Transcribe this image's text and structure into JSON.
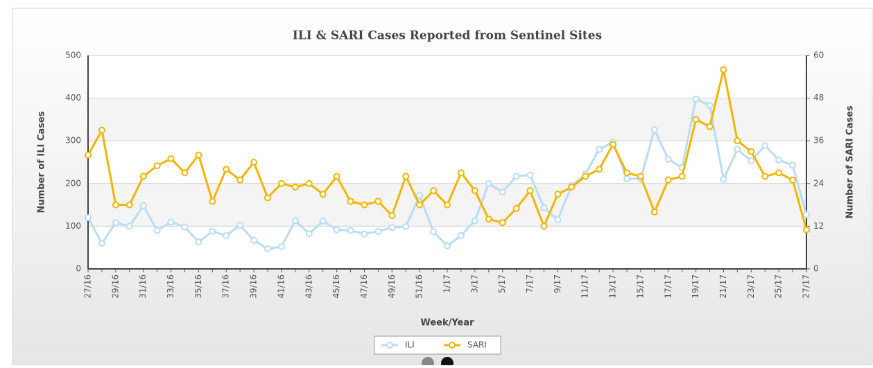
{
  "chart_data": {
    "type": "line",
    "title": "ILI & SARI Cases Reported from Sentinel Sites",
    "x_label": "Week/Year",
    "y_label": "Number of ILI Cases",
    "y2_label": "Number of SARI Cases",
    "categories": [
      "27/16",
      null,
      "29/16",
      null,
      "31/16",
      null,
      "33/16",
      null,
      "35/16",
      null,
      "37/16",
      null,
      "39/16",
      null,
      "41/16",
      null,
      "43/16",
      null,
      "45/16",
      null,
      "47/16",
      null,
      "49/16",
      null,
      "51/16",
      null,
      "1/17",
      null,
      "3/17",
      null,
      "5/17",
      null,
      "7/17",
      null,
      "9/17",
      null,
      "11/17",
      null,
      "13/17",
      null,
      "15/17",
      null,
      "17/17",
      null,
      "19/17",
      null,
      "21/17",
      null,
      "23/17",
      null,
      "25/17",
      null,
      "27/17"
    ],
    "series": [
      {
        "name": "ILI",
        "color": "#b8dcf5",
        "values": [
          120,
          60,
          108,
          100,
          148,
          90,
          110,
          98,
          63,
          88,
          78,
          102,
          67,
          47,
          52,
          113,
          82,
          112,
          92,
          90,
          82,
          88,
          97,
          99,
          172,
          87,
          54,
          78,
          113,
          200,
          180,
          217,
          220,
          143,
          115,
          195,
          222,
          280,
          297,
          211,
          211,
          326,
          257,
          237,
          398,
          383,
          210,
          280,
          253,
          289,
          255,
          243,
          127
        ]
      },
      {
        "name": "SARI",
        "color": "#f5b400",
        "axis": "y2",
        "values": [
          32,
          39,
          18,
          18,
          26,
          29,
          31,
          27,
          32,
          19,
          28,
          25,
          30,
          20,
          24,
          23,
          24,
          21,
          26,
          19,
          18,
          19,
          15,
          26,
          18,
          22,
          18,
          27,
          22,
          14,
          13,
          17,
          22,
          12,
          21,
          23,
          26,
          28,
          35,
          27,
          26,
          16,
          25,
          26,
          42,
          40,
          56,
          36,
          33,
          26,
          27,
          25,
          11
        ]
      }
    ],
    "ylim": [
      0,
      500
    ],
    "yticks": [
      0,
      100,
      200,
      300,
      400,
      500
    ],
    "y2lim": [
      0,
      60
    ],
    "y2ticks": [
      0,
      12,
      24,
      36,
      48,
      60
    ],
    "grid": true,
    "legend": "bottom"
  }
}
